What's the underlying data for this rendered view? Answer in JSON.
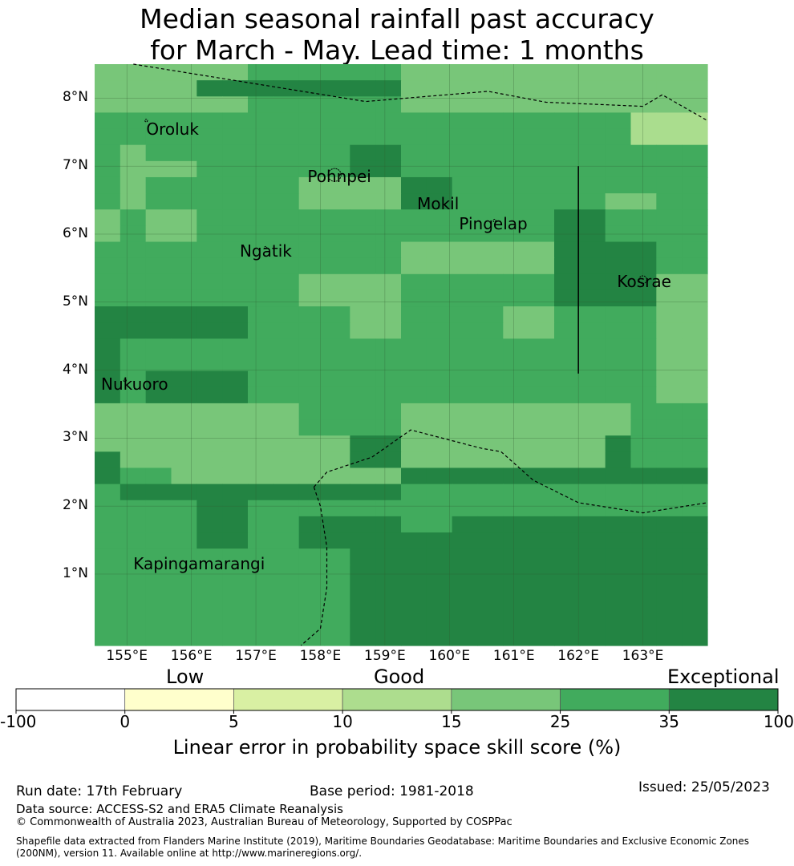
{
  "title": {
    "line1": "Median seasonal rainfall past accuracy",
    "line2": "for March - May. Lead time: 1 months"
  },
  "map": {
    "extent": {
      "lon_min": 154.5,
      "lon_max": 164.0,
      "lat_min": -0.05,
      "lat_max": 8.5
    },
    "lat_ticks": [
      {
        "value": 8,
        "label": "8°N"
      },
      {
        "value": 7,
        "label": "7°N"
      },
      {
        "value": 6,
        "label": "6°N"
      },
      {
        "value": 5,
        "label": "5°N"
      },
      {
        "value": 4,
        "label": "4°N"
      },
      {
        "value": 3,
        "label": "3°N"
      },
      {
        "value": 2,
        "label": "2°N"
      },
      {
        "value": 1,
        "label": "1°N"
      }
    ],
    "lon_ticks": [
      {
        "value": 155,
        "label": "155°E"
      },
      {
        "value": 156,
        "label": "156°E"
      },
      {
        "value": 157,
        "label": "157°E"
      },
      {
        "value": 158,
        "label": "158°E"
      },
      {
        "value": 159,
        "label": "159°E"
      },
      {
        "value": 160,
        "label": "160°E"
      },
      {
        "value": 161,
        "label": "161°E"
      },
      {
        "value": 162,
        "label": "162°E"
      },
      {
        "value": 163,
        "label": "163°E"
      }
    ],
    "places": [
      {
        "name": "Oroluk",
        "lon": 155.3,
        "lat": 7.55
      },
      {
        "name": "Pohnpei",
        "lon": 157.8,
        "lat": 6.85
      },
      {
        "name": "Mokil",
        "lon": 159.5,
        "lat": 6.45
      },
      {
        "name": "Pingelap",
        "lon": 160.15,
        "lat": 6.15
      },
      {
        "name": "Ngatik",
        "lon": 156.75,
        "lat": 5.75
      },
      {
        "name": "Kosrae",
        "lon": 162.6,
        "lat": 5.3
      },
      {
        "name": "Nukuoro",
        "lon": 154.6,
        "lat": 3.8
      },
      {
        "name": "Kapingamarangi",
        "lon": 155.1,
        "lat": 1.15
      }
    ],
    "grid_category_rows": [
      "333333666666333333333333",
      "333355555555333333333333",
      "333333666666333333333333",
      "444466666666444444444222",
      "444466666666444444444222",
      "434444444455444444444444",
      "433344444455444444444444",
      "434444443333554444444444",
      "434444443333554444443344",
      "343344444444444444554444",
      "343344444444444444554444",
      "444444444444333333555544",
      "444444444444333333555544",
      "444444443333444444555533",
      "444444443333444444555533",
      "555555444433444433444433",
      "555555444433444433444433",
      "544444444444444444444433",
      "544444444444444444444433",
      "545555444444444444444433",
      "545555444444444444444433",
      "333333334444333333333444",
      "333333334444333333333444",
      "333333333355333333335444",
      "533333333355333333335444",
      "544333333333555555555555",
      "455555555555444444444444",
      "444455444444444444444444",
      "444455445555445555555555",
      "444455445555555555555555",
      "444444444455555555555555",
      "444444444455555555555555",
      "444444444455555555555555",
      "444444444455555555555555",
      "444444444455555555555555",
      "444444444455555555555555"
    ],
    "colors": {
      "cat2": "#aadd8e",
      "cat3": "#78c679",
      "cat4": "#41ab5d",
      "cat5": "#238443",
      "cat6": "#41ab5d",
      "grid_line": "#2f5a2f",
      "boundary_line": "#000000"
    },
    "vertical_line": {
      "lon": 162.0,
      "lat_from": 3.95,
      "lat_to": 7.0
    },
    "eez_boundaries": [
      [
        [
          155.1,
          8.5
        ],
        [
          158.7,
          7.95
        ],
        [
          160.6,
          8.1
        ],
        [
          161.5,
          7.94
        ],
        [
          163.0,
          7.88
        ],
        [
          163.3,
          8.05
        ],
        [
          164.0,
          7.67
        ]
      ],
      [
        [
          157.9,
          2.28
        ],
        [
          158.1,
          2.5
        ],
        [
          158.8,
          2.72
        ],
        [
          159.4,
          3.12
        ],
        [
          160.5,
          2.85
        ],
        [
          160.8,
          2.8
        ],
        [
          161.3,
          2.38
        ],
        [
          162.0,
          2.05
        ],
        [
          163.0,
          1.9
        ],
        [
          164.0,
          2.05
        ]
      ],
      [
        [
          157.9,
          2.28
        ],
        [
          158.0,
          2.0
        ],
        [
          158.1,
          1.4
        ],
        [
          158.1,
          0.8
        ],
        [
          158.0,
          0.2
        ],
        [
          157.7,
          -0.05
        ]
      ]
    ],
    "islands": [
      {
        "lon": 158.22,
        "lat": 6.87,
        "r": 0.1
      },
      {
        "lon": 163.0,
        "lat": 5.33,
        "r": 0.06
      },
      {
        "lon": 155.3,
        "lat": 7.67,
        "r": 0.02
      },
      {
        "lon": 157.15,
        "lat": 5.8,
        "r": 0.02
      },
      {
        "lon": 160.7,
        "lat": 6.2,
        "r": 0.02
      },
      {
        "lon": 154.97,
        "lat": 3.85,
        "r": 0.02
      }
    ]
  },
  "colorbar": {
    "category_labels": [
      {
        "text": "Low",
        "name": "low"
      },
      {
        "text": "Good",
        "name": "good"
      },
      {
        "text": "Exceptional",
        "name": "exceptional"
      }
    ],
    "segments": [
      {
        "from": "-100",
        "to": "0",
        "color": "#ffffff"
      },
      {
        "from": "0",
        "to": "5",
        "color": "#ffffcc"
      },
      {
        "from": "5",
        "to": "10",
        "color": "#d9f0a3"
      },
      {
        "from": "10",
        "to": "15",
        "color": "#addd8e"
      },
      {
        "from": "15",
        "to": "25",
        "color": "#78c679"
      },
      {
        "from": "25",
        "to": "35",
        "color": "#41ab5d"
      },
      {
        "from": "35",
        "to": "100",
        "color": "#238443"
      }
    ],
    "ticks": [
      "-100",
      "0",
      "5",
      "10",
      "15",
      "25",
      "35",
      "100"
    ],
    "title": "Linear error in probability space skill score (%)"
  },
  "footer": {
    "run_date": "Run date: 17th February",
    "base_period": "Base period: 1981-2018",
    "issued": "Issued: 25/05/2023",
    "data_source": "Data source: ACCESS-S2 and ERA5 Climate Reanalysis",
    "copyright": "© Commonwealth of Australia 2023, Australian Bureau of Meteorology, Supported by COSPPac",
    "shapefile_1": "Shapefile data extracted from Flanders Marine Institute (2019), Maritime Boundaries Geodatabase: Maritime Boundaries and Exclusive Economic Zones",
    "shapefile_2": "(200NM), version 11. Available online at http://www.marineregions.org/."
  }
}
